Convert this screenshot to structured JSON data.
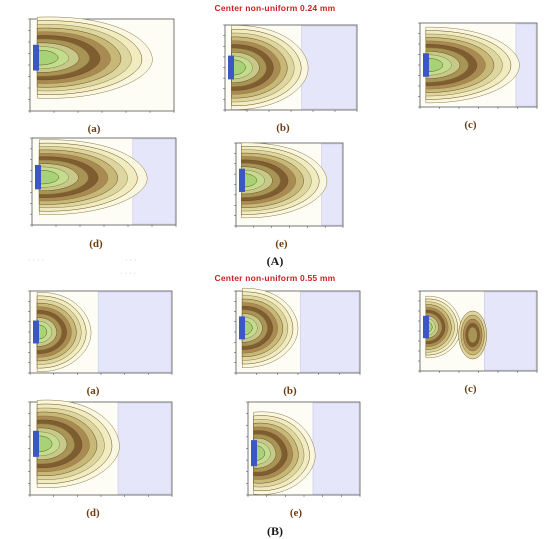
{
  "section_A": {
    "title": "Center non-uniform 0.24 mm",
    "label": "(A)",
    "panels": [
      {
        "caption": "(a)"
      },
      {
        "caption": "(b)"
      },
      {
        "caption": "(c)"
      },
      {
        "caption": "(d)"
      },
      {
        "caption": "(e)"
      }
    ]
  },
  "section_B": {
    "title": "Center non-uniform 0.55 mm",
    "label": "(B)",
    "panels": [
      {
        "caption": "(a)"
      },
      {
        "caption": "(b)"
      },
      {
        "caption": "(c)"
      },
      {
        "caption": "(d)"
      },
      {
        "caption": "(e)"
      }
    ]
  },
  "colors": {
    "title_red": "#cc1f1f",
    "caption_brown": "#6b3d12",
    "bar_blue": "#3b57c4",
    "contour_dark": "#6e4a22",
    "contour_mid": "#b89a55",
    "contour_light": "#f2edc8",
    "contour_green": "#c3dd8e",
    "background_lavender": "#e6e6fa"
  }
}
